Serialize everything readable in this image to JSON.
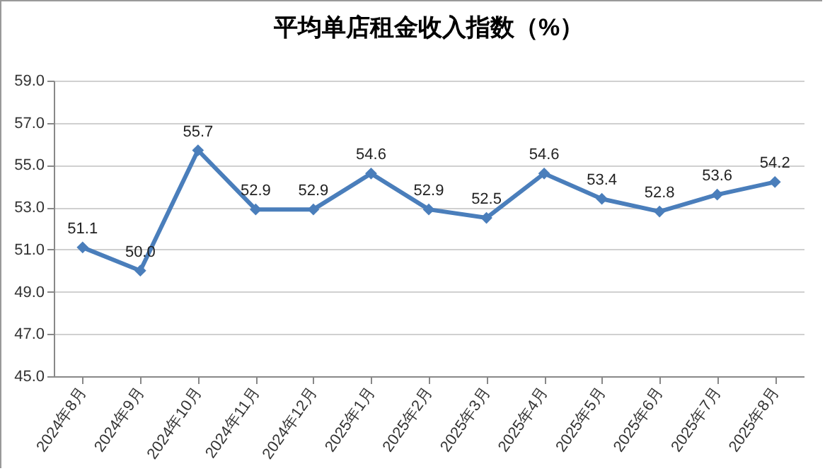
{
  "chart_data": {
    "type": "line",
    "title": "平均单店租金收入指数（%）",
    "categories": [
      "2024年8月",
      "2024年9月",
      "2024年10月",
      "2024年11月",
      "2024年12月",
      "2025年1月",
      "2025年2月",
      "2025年3月",
      "2025年4月",
      "2025年5月",
      "2025年6月",
      "2025年7月",
      "2025年8月"
    ],
    "series": [
      {
        "color": "#4a7ebb",
        "values": [
          51.1,
          50.0,
          55.7,
          52.9,
          52.9,
          54.6,
          52.9,
          52.5,
          54.6,
          53.4,
          52.8,
          53.6,
          54.2
        ],
        "value_labels": [
          "51.1",
          "50.0",
          "55.7",
          "52.9",
          "52.9",
          "54.6",
          "52.9",
          "52.5",
          "54.6",
          "53.4",
          "52.8",
          "53.6",
          "54.2"
        ]
      }
    ],
    "ylim": [
      45,
      59
    ],
    "yticks": [
      {
        "value": 45,
        "label": "45.0"
      },
      {
        "value": 47,
        "label": "47.0"
      },
      {
        "value": 49,
        "label": "49.0"
      },
      {
        "value": 51,
        "label": "51.0"
      },
      {
        "value": 53,
        "label": "53.0"
      },
      {
        "value": 55,
        "label": "55.0"
      },
      {
        "value": 57,
        "label": "57.0"
      },
      {
        "value": 59,
        "label": "59.0"
      }
    ],
    "grid": "y",
    "marker": "diamond",
    "line_style": "solid"
  }
}
